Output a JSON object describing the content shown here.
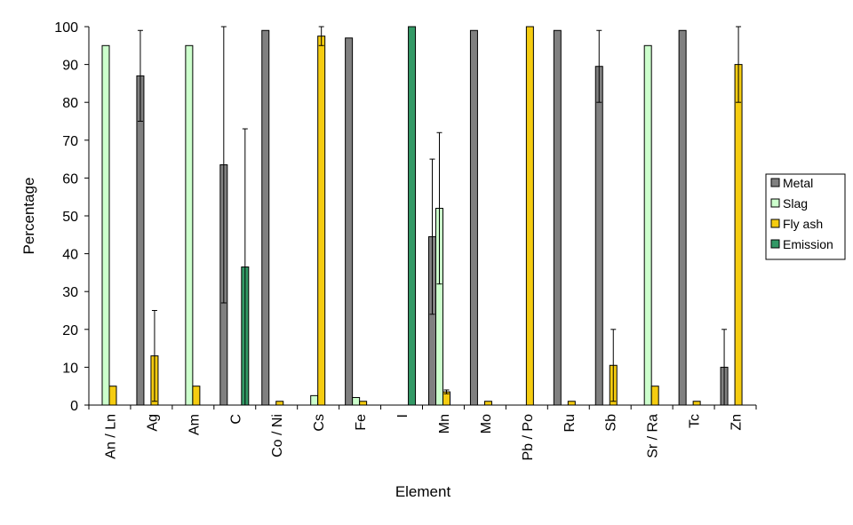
{
  "chart_data": {
    "type": "bar",
    "title": "",
    "xlabel": "Element",
    "ylabel": "Percentage",
    "ylim": [
      0,
      100
    ],
    "yticks": [
      0,
      10,
      20,
      30,
      40,
      50,
      60,
      70,
      80,
      90,
      100
    ],
    "grid": false,
    "legend_position": "right",
    "categories": [
      "An / Ln",
      "Ag",
      "Am",
      "C",
      "Co / Ni",
      "Cs",
      "Fe",
      "I",
      "Mn",
      "Mo",
      "Pb / Po",
      "Ru",
      "Sb",
      "Sr / Ra",
      "Tc",
      "Zn"
    ],
    "series": [
      {
        "name": "Metal",
        "color": "#808080",
        "values": [
          0,
          87,
          0,
          63.5,
          99,
          0,
          97,
          0,
          44.5,
          99,
          0,
          99,
          89.5,
          0,
          99,
          10
        ],
        "errors": [
          0,
          12,
          0,
          36.5,
          0,
          0,
          0,
          0,
          20.5,
          0,
          0,
          0,
          9.5,
          0,
          0,
          10
        ]
      },
      {
        "name": "Slag",
        "color": "#ccffcc",
        "values": [
          95,
          0,
          95,
          0,
          0,
          2.5,
          2,
          0,
          52,
          0,
          0,
          0,
          0,
          95,
          0,
          0
        ],
        "errors": [
          0,
          0,
          0,
          0,
          0,
          0,
          0,
          0,
          20,
          0,
          0,
          0,
          0,
          0,
          0,
          0
        ]
      },
      {
        "name": "Fly ash",
        "color": "#f5cc10",
        "values": [
          5,
          13,
          5,
          0,
          1,
          97.5,
          1,
          0,
          3.5,
          1,
          100,
          1,
          10.5,
          5,
          1,
          90
        ],
        "errors": [
          0,
          12,
          0,
          0,
          0,
          2.5,
          0,
          0,
          0.5,
          0,
          0,
          0,
          9.5,
          0,
          0,
          10
        ]
      },
      {
        "name": "Emission",
        "color": "#339966",
        "values": [
          0,
          0,
          0,
          36.5,
          0,
          0,
          0,
          100,
          0,
          0,
          0,
          0,
          0,
          0,
          0,
          0
        ],
        "errors": [
          0,
          0,
          0,
          36.5,
          0,
          0,
          0,
          0,
          0,
          0,
          0,
          0,
          0,
          0,
          0,
          0
        ]
      }
    ]
  }
}
